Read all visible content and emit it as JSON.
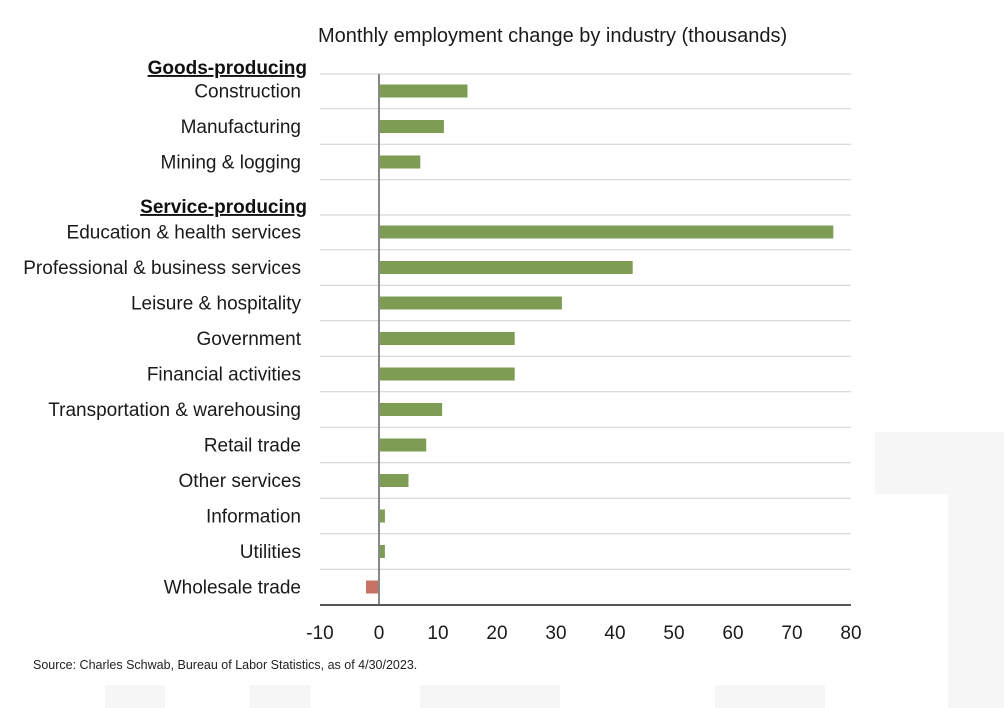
{
  "chart_data": {
    "type": "bar",
    "orientation": "horizontal",
    "title": "Monthly employment change by industry (thousands)",
    "groups": [
      {
        "label": "Goods-producing",
        "categories": [
          "Construction",
          "Manufacturing",
          "Mining & logging"
        ]
      },
      {
        "label": "Service-producing",
        "categories": [
          "Education & health services",
          "Professional & business services",
          "Leisure & hospitality",
          "Government",
          "Financial activities",
          "Transportation & warehousing",
          "Retail trade",
          "Other services",
          "Information",
          "Utilities",
          "Wholesale trade"
        ]
      }
    ],
    "categories": [
      "Construction",
      "Manufacturing",
      "Mining & logging",
      "Education & health services",
      "Professional & business services",
      "Leisure & hospitality",
      "Government",
      "Financial activities",
      "Transportation & warehousing",
      "Retail trade",
      "Other services",
      "Information",
      "Utilities",
      "Wholesale trade"
    ],
    "values": [
      15,
      11,
      7,
      77,
      43,
      31,
      23,
      23,
      10.7,
      8,
      5,
      1,
      1,
      -2.2
    ],
    "xlim": [
      -10,
      80
    ],
    "xticks": [
      -10,
      0,
      10,
      20,
      30,
      40,
      50,
      60,
      70,
      80
    ],
    "xtick_labels": [
      "-10",
      "0",
      "10",
      "20",
      "30",
      "40",
      "50",
      "60",
      "70",
      "80"
    ],
    "grid": true,
    "colors": {
      "positive": "#7e9c54",
      "negative": "#c87265",
      "zero_line": "#888888",
      "grid": "#cfcfcf",
      "axis": "#555555"
    }
  },
  "source": "Source: Charles Schwab, Bureau of Labor Statistics, as of 4/30/2023."
}
